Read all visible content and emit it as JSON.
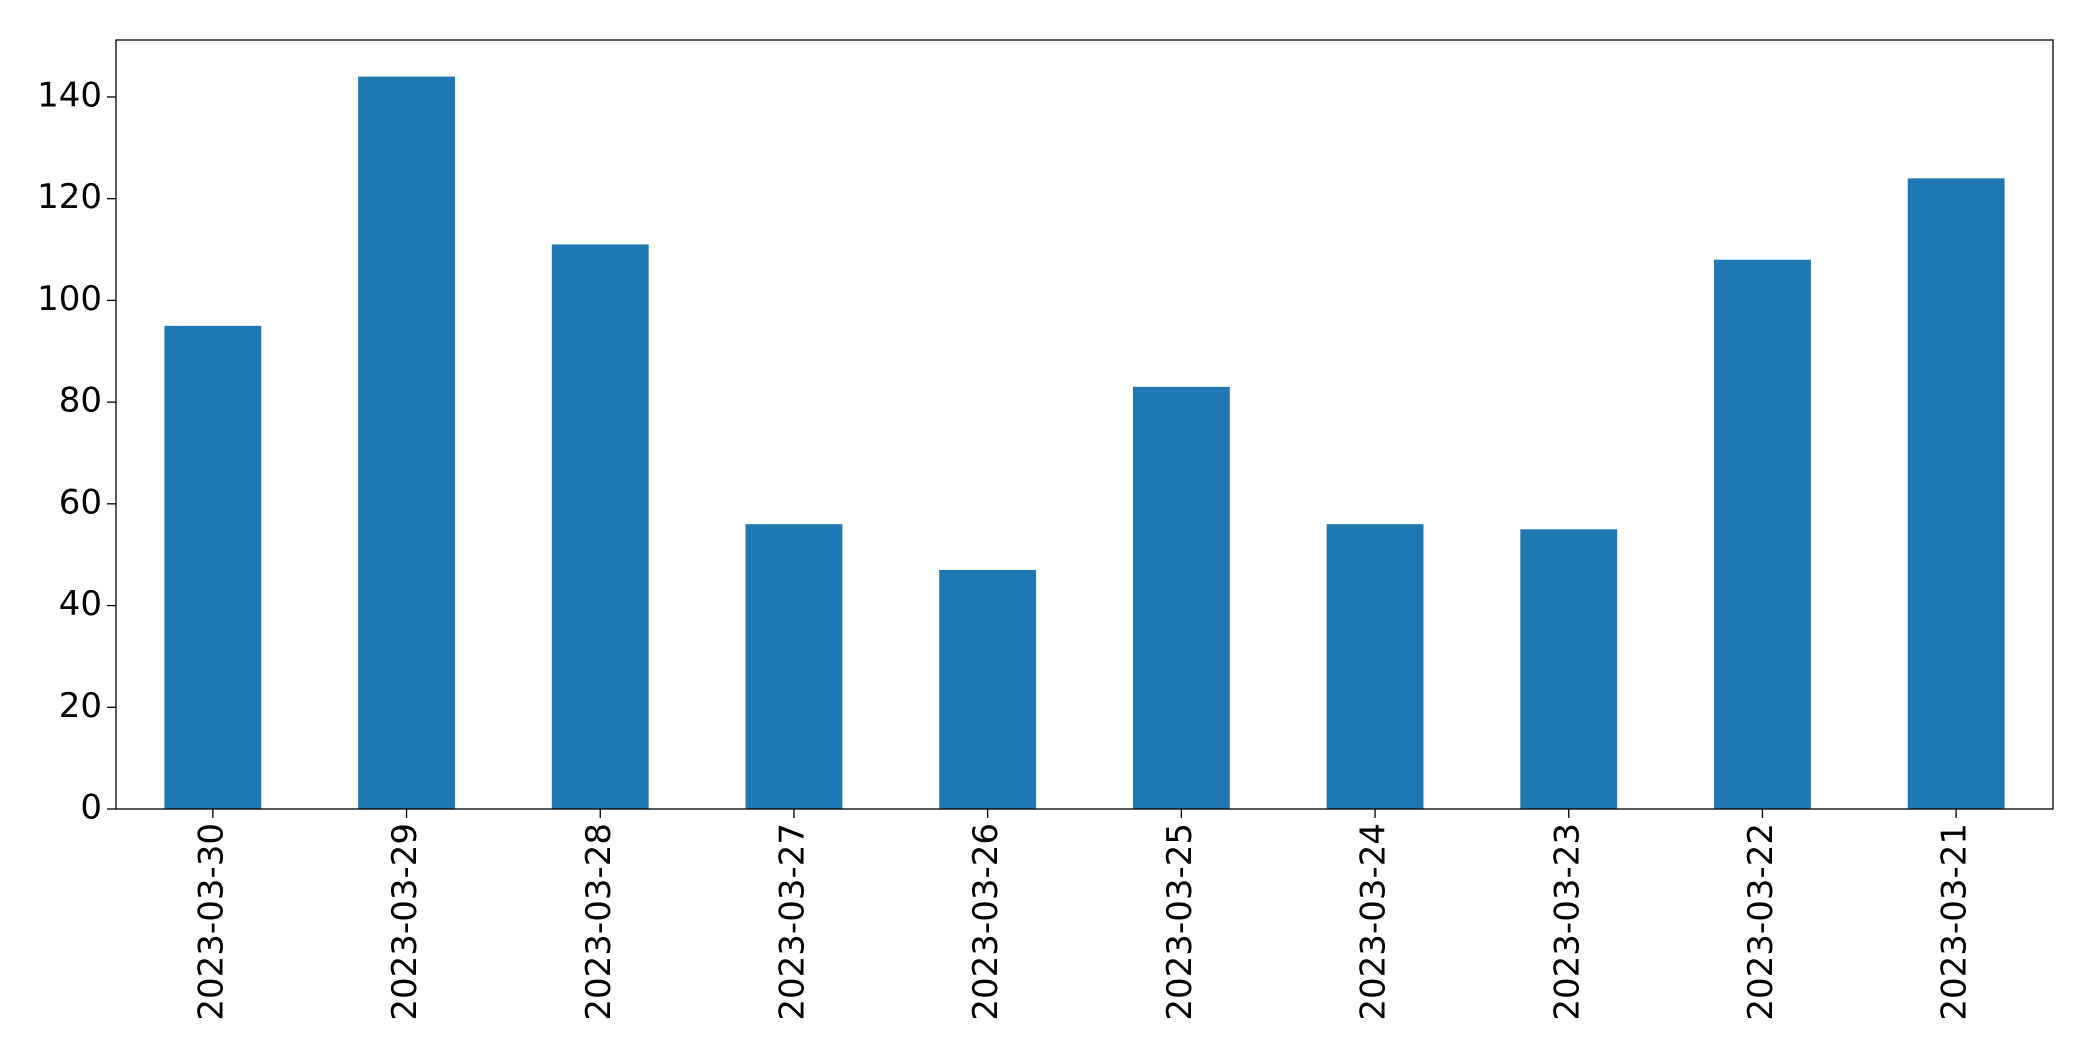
{
  "chart_data": {
    "type": "bar",
    "categories": [
      "2023-03-30",
      "2023-03-29",
      "2023-03-28",
      "2023-03-27",
      "2023-03-26",
      "2023-03-25",
      "2023-03-24",
      "2023-03-23",
      "2023-03-22",
      "2023-03-21"
    ],
    "values": [
      95,
      144,
      111,
      56,
      47,
      83,
      56,
      55,
      108,
      124
    ],
    "color": "#1f77b4",
    "ylim": [
      0,
      151.2
    ],
    "yticks": [
      0,
      20,
      40,
      60,
      80,
      100,
      120,
      140
    ],
    "grid": false
  }
}
